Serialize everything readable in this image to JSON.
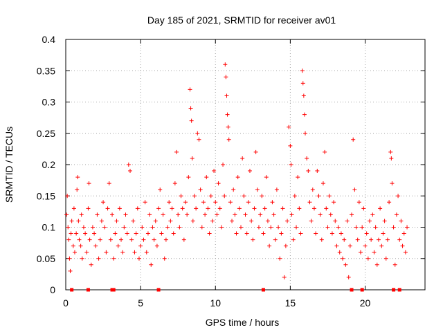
{
  "chart_data": {
    "type": "scatter",
    "title": "Day 185 of 2021, SRMTID for receiver av01",
    "xlabel": "GPS time / hours",
    "ylabel": "SRMTID / TECUs",
    "xlim": [
      0,
      24
    ],
    "ylim": [
      0,
      0.4
    ],
    "x_ticks": [
      0,
      5,
      10,
      15,
      20
    ],
    "x_tick_labels": [
      "0",
      "5",
      "10",
      "15",
      "20"
    ],
    "y_ticks": [
      0,
      0.05,
      0.1,
      0.15,
      0.2,
      0.25,
      0.3,
      0.35,
      0.4
    ],
    "y_tick_labels": [
      "0",
      "0.05",
      "0.1",
      "0.15",
      "0.2",
      "0.25",
      "0.3",
      "0.35",
      "0.4"
    ],
    "grid": true,
    "marker": "plus",
    "color": "#ff0000",
    "series": [
      {
        "name": "SRMTID",
        "points": [
          [
            0.05,
            0.12
          ],
          [
            0.1,
            0.15
          ],
          [
            0.15,
            0.1
          ],
          [
            0.2,
            0.08
          ],
          [
            0.25,
            0.05
          ],
          [
            0.3,
            0.03
          ],
          [
            0.35,
            0.09
          ],
          [
            0.4,
            0.11
          ],
          [
            0.5,
            0.07
          ],
          [
            0.55,
            0.13
          ],
          [
            0.6,
            0.06
          ],
          [
            0.7,
            0.09
          ],
          [
            0.75,
            0.16
          ],
          [
            0.8,
            0.18
          ],
          [
            0.85,
            0.11
          ],
          [
            0.9,
            0.08
          ],
          [
            1.0,
            0.07
          ],
          [
            1.05,
            0.12
          ],
          [
            1.1,
            0.05
          ],
          [
            1.2,
            0.1
          ],
          [
            1.3,
            0.09
          ],
          [
            1.4,
            0.06
          ],
          [
            1.5,
            0.13
          ],
          [
            1.55,
            0.17
          ],
          [
            1.6,
            0.08
          ],
          [
            1.7,
            0.04
          ],
          [
            1.8,
            0.1
          ],
          [
            1.9,
            0.09
          ],
          [
            2.0,
            0.07
          ],
          [
            2.1,
            0.12
          ],
          [
            2.2,
            0.05
          ],
          [
            2.3,
            0.08
          ],
          [
            2.4,
            0.11
          ],
          [
            2.5,
            0.14
          ],
          [
            2.6,
            0.1
          ],
          [
            2.7,
            0.06
          ],
          [
            2.8,
            0.13
          ],
          [
            2.9,
            0.17
          ],
          [
            3.0,
            0.08
          ],
          [
            3.1,
            0.12
          ],
          [
            3.2,
            0.05
          ],
          [
            3.3,
            0.09
          ],
          [
            3.4,
            0.11
          ],
          [
            3.5,
            0.07
          ],
          [
            3.6,
            0.13
          ],
          [
            3.7,
            0.08
          ],
          [
            3.8,
            0.06
          ],
          [
            3.9,
            0.1
          ],
          [
            4.0,
            0.12
          ],
          [
            4.1,
            0.09
          ],
          [
            4.2,
            0.2
          ],
          [
            4.3,
            0.19
          ],
          [
            4.4,
            0.08
          ],
          [
            4.5,
            0.11
          ],
          [
            4.6,
            0.06
          ],
          [
            4.7,
            0.09
          ],
          [
            4.8,
            0.13
          ],
          [
            4.9,
            0.05
          ],
          [
            5.0,
            0.07
          ],
          [
            5.1,
            0.1
          ],
          [
            5.2,
            0.08
          ],
          [
            5.3,
            0.14
          ],
          [
            5.4,
            0.06
          ],
          [
            5.5,
            0.09
          ],
          [
            5.6,
            0.12
          ],
          [
            5.7,
            0.04
          ],
          [
            5.8,
            0.1
          ],
          [
            5.9,
            0.08
          ],
          [
            6.0,
            0.11
          ],
          [
            6.1,
            0.07
          ],
          [
            6.2,
            0.13
          ],
          [
            6.3,
            0.16
          ],
          [
            6.4,
            0.09
          ],
          [
            6.5,
            0.12
          ],
          [
            6.6,
            0.05
          ],
          [
            6.7,
            0.08
          ],
          [
            6.8,
            0.1
          ],
          [
            6.9,
            0.14
          ],
          [
            7.0,
            0.11
          ],
          [
            7.1,
            0.13
          ],
          [
            7.2,
            0.09
          ],
          [
            7.3,
            0.17
          ],
          [
            7.4,
            0.22
          ],
          [
            7.5,
            0.12
          ],
          [
            7.6,
            0.1
          ],
          [
            7.7,
            0.15
          ],
          [
            7.8,
            0.13
          ],
          [
            7.9,
            0.08
          ],
          [
            8.0,
            0.14
          ],
          [
            8.1,
            0.12
          ],
          [
            8.2,
            0.18
          ],
          [
            8.3,
            0.32
          ],
          [
            8.35,
            0.29
          ],
          [
            8.4,
            0.27
          ],
          [
            8.45,
            0.21
          ],
          [
            8.5,
            0.11
          ],
          [
            8.6,
            0.15
          ],
          [
            8.7,
            0.13
          ],
          [
            8.8,
            0.25
          ],
          [
            8.9,
            0.24
          ],
          [
            9.0,
            0.16
          ],
          [
            9.1,
            0.1
          ],
          [
            9.2,
            0.14
          ],
          [
            9.3,
            0.12
          ],
          [
            9.4,
            0.18
          ],
          [
            9.5,
            0.13
          ],
          [
            9.6,
            0.09
          ],
          [
            9.7,
            0.15
          ],
          [
            9.8,
            0.11
          ],
          [
            9.9,
            0.19
          ],
          [
            10.0,
            0.14
          ],
          [
            10.1,
            0.12
          ],
          [
            10.2,
            0.17
          ],
          [
            10.3,
            0.13
          ],
          [
            10.4,
            0.1
          ],
          [
            10.5,
            0.2
          ],
          [
            10.6,
            0.15
          ],
          [
            10.65,
            0.36
          ],
          [
            10.7,
            0.34
          ],
          [
            10.75,
            0.31
          ],
          [
            10.8,
            0.28
          ],
          [
            10.85,
            0.26
          ],
          [
            10.9,
            0.24
          ],
          [
            11.0,
            0.14
          ],
          [
            11.1,
            0.11
          ],
          [
            11.2,
            0.16
          ],
          [
            11.3,
            0.12
          ],
          [
            11.4,
            0.09
          ],
          [
            11.5,
            0.18
          ],
          [
            11.6,
            0.13
          ],
          [
            11.7,
            0.1
          ],
          [
            11.8,
            0.21
          ],
          [
            11.9,
            0.15
          ],
          [
            12.0,
            0.12
          ],
          [
            12.1,
            0.09
          ],
          [
            12.2,
            0.14
          ],
          [
            12.3,
            0.19
          ],
          [
            12.4,
            0.11
          ],
          [
            12.5,
            0.08
          ],
          [
            12.6,
            0.13
          ],
          [
            12.7,
            0.22
          ],
          [
            12.8,
            0.16
          ],
          [
            12.9,
            0.1
          ],
          [
            13.0,
            0.12
          ],
          [
            13.1,
            0.15
          ],
          [
            13.2,
            0.09
          ],
          [
            13.3,
            0.13
          ],
          [
            13.4,
            0.18
          ],
          [
            13.5,
            0.11
          ],
          [
            13.6,
            0.07
          ],
          [
            13.7,
            0.1
          ],
          [
            13.8,
            0.14
          ],
          [
            13.9,
            0.12
          ],
          [
            14.0,
            0.08
          ],
          [
            14.1,
            0.16
          ],
          [
            14.2,
            0.1
          ],
          [
            14.3,
            0.05
          ],
          [
            14.4,
            0.09
          ],
          [
            14.5,
            0.13
          ],
          [
            14.6,
            0.02
          ],
          [
            14.7,
            0.07
          ],
          [
            14.8,
            0.11
          ],
          [
            14.9,
            0.26
          ],
          [
            15.0,
            0.23
          ],
          [
            15.05,
            0.2
          ],
          [
            15.1,
            0.12
          ],
          [
            15.2,
            0.08
          ],
          [
            15.3,
            0.15
          ],
          [
            15.4,
            0.1
          ],
          [
            15.5,
            0.18
          ],
          [
            15.6,
            0.13
          ],
          [
            15.7,
            0.09
          ],
          [
            15.8,
            0.35
          ],
          [
            15.85,
            0.33
          ],
          [
            15.9,
            0.31
          ],
          [
            15.95,
            0.28
          ],
          [
            16.0,
            0.25
          ],
          [
            16.1,
            0.21
          ],
          [
            16.2,
            0.19
          ],
          [
            16.3,
            0.14
          ],
          [
            16.4,
            0.11
          ],
          [
            16.5,
            0.16
          ],
          [
            16.6,
            0.13
          ],
          [
            16.7,
            0.09
          ],
          [
            16.8,
            0.19
          ],
          [
            16.9,
            0.15
          ],
          [
            17.0,
            0.12
          ],
          [
            17.1,
            0.08
          ],
          [
            17.2,
            0.17
          ],
          [
            17.3,
            0.22
          ],
          [
            17.4,
            0.13
          ],
          [
            17.5,
            0.1
          ],
          [
            17.6,
            0.15
          ],
          [
            17.7,
            0.12
          ],
          [
            17.8,
            0.09
          ],
          [
            17.9,
            0.14
          ],
          [
            18.0,
            0.11
          ],
          [
            18.1,
            0.07
          ],
          [
            18.2,
            0.1
          ],
          [
            18.3,
            0.06
          ],
          [
            18.4,
            0.09
          ],
          [
            18.5,
            0.05
          ],
          [
            18.6,
            0.08
          ],
          [
            18.7,
            0.04
          ],
          [
            18.8,
            0.11
          ],
          [
            18.9,
            0.02
          ],
          [
            19.0,
            0.07
          ],
          [
            19.1,
            0.12
          ],
          [
            19.2,
            0.24
          ],
          [
            19.3,
            0.16
          ],
          [
            19.4,
            0.1
          ],
          [
            19.5,
            0.08
          ],
          [
            19.6,
            0.14
          ],
          [
            19.7,
            0.06
          ],
          [
            19.8,
            0.1
          ],
          [
            19.9,
            0.13
          ],
          [
            20.0,
            0.07
          ],
          [
            20.1,
            0.09
          ],
          [
            20.2,
            0.05
          ],
          [
            20.3,
            0.11
          ],
          [
            20.4,
            0.08
          ],
          [
            20.5,
            0.12
          ],
          [
            20.6,
            0.06
          ],
          [
            20.7,
            0.1
          ],
          [
            20.8,
            0.04
          ],
          [
            20.9,
            0.08
          ],
          [
            21.0,
            0.13
          ],
          [
            21.1,
            0.07
          ],
          [
            21.2,
            0.09
          ],
          [
            21.3,
            0.11
          ],
          [
            21.4,
            0.05
          ],
          [
            21.5,
            0.08
          ],
          [
            21.6,
            0.14
          ],
          [
            21.7,
            0.22
          ],
          [
            21.75,
            0.21
          ],
          [
            21.8,
            0.17
          ],
          [
            21.9,
            0.1
          ],
          [
            22.0,
            0.04
          ],
          [
            22.1,
            0.12
          ],
          [
            22.2,
            0.15
          ],
          [
            22.3,
            0.08
          ],
          [
            22.4,
            0.11
          ],
          [
            22.5,
            0.07
          ],
          [
            22.6,
            0.09
          ],
          [
            22.7,
            0.06
          ],
          [
            22.8,
            0.1
          ]
        ]
      },
      {
        "name": "gap markers",
        "points": [
          [
            0.4,
            0
          ],
          [
            1.5,
            0
          ],
          [
            3.1,
            0
          ],
          [
            3.2,
            0
          ],
          [
            6.2,
            0
          ],
          [
            13.2,
            0
          ],
          [
            19.1,
            0
          ],
          [
            19.8,
            0
          ],
          [
            21.9,
            0
          ],
          [
            22.3,
            0
          ]
        ]
      }
    ]
  }
}
